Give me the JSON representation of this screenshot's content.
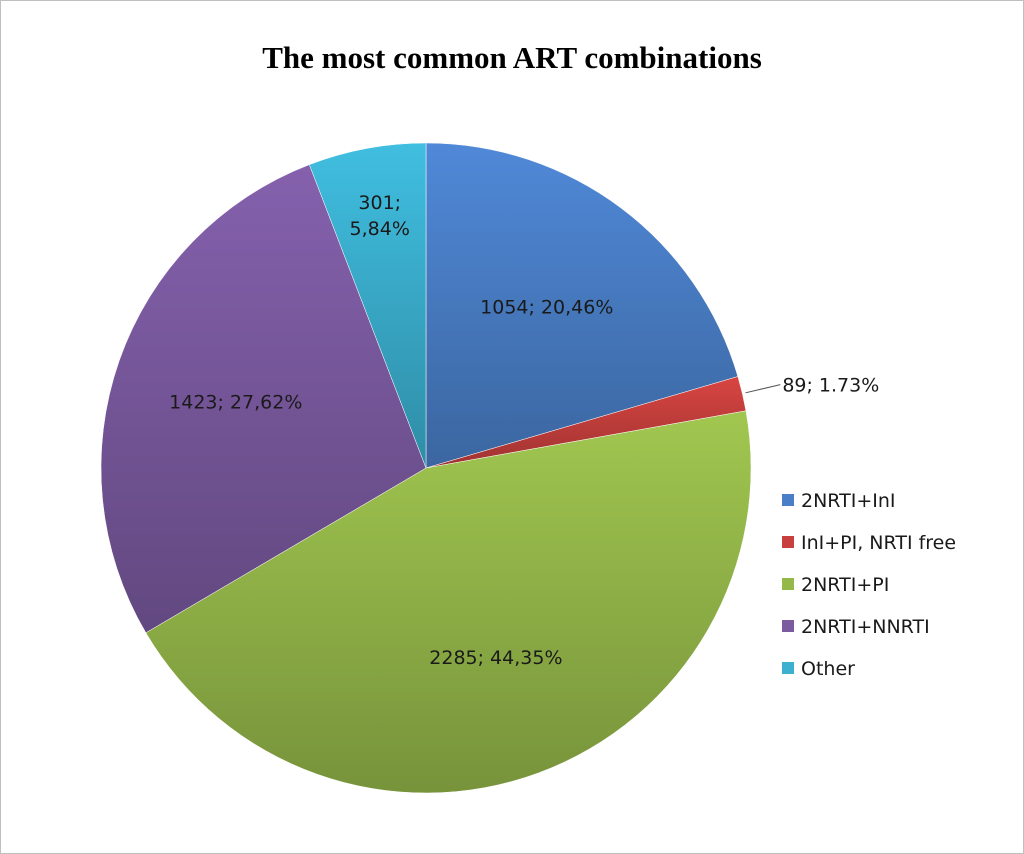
{
  "chart_data": {
    "type": "pie",
    "title": "The most common ART combinations",
    "slices": [
      {
        "name": "2NRTI+InI",
        "value": 1054,
        "label": "1054; 20,46%",
        "color": "#4a7fc8"
      },
      {
        "name": "InI+PI, NRTI free",
        "value": 89,
        "label": "89; 1.73%",
        "color": "#c8403d"
      },
      {
        "name": "2NRTI+PI",
        "value": 2285,
        "label": "2285; 44,35%",
        "color": "#95b84a"
      },
      {
        "name": "2NRTI+NNRTI",
        "value": 1423,
        "label": "1423; 27,62%",
        "color": "#7b5aa0"
      },
      {
        "name": "Other",
        "value": 301,
        "label": "301; 5,84%",
        "color": "#3bb0cf"
      }
    ],
    "legend_position": "right"
  }
}
